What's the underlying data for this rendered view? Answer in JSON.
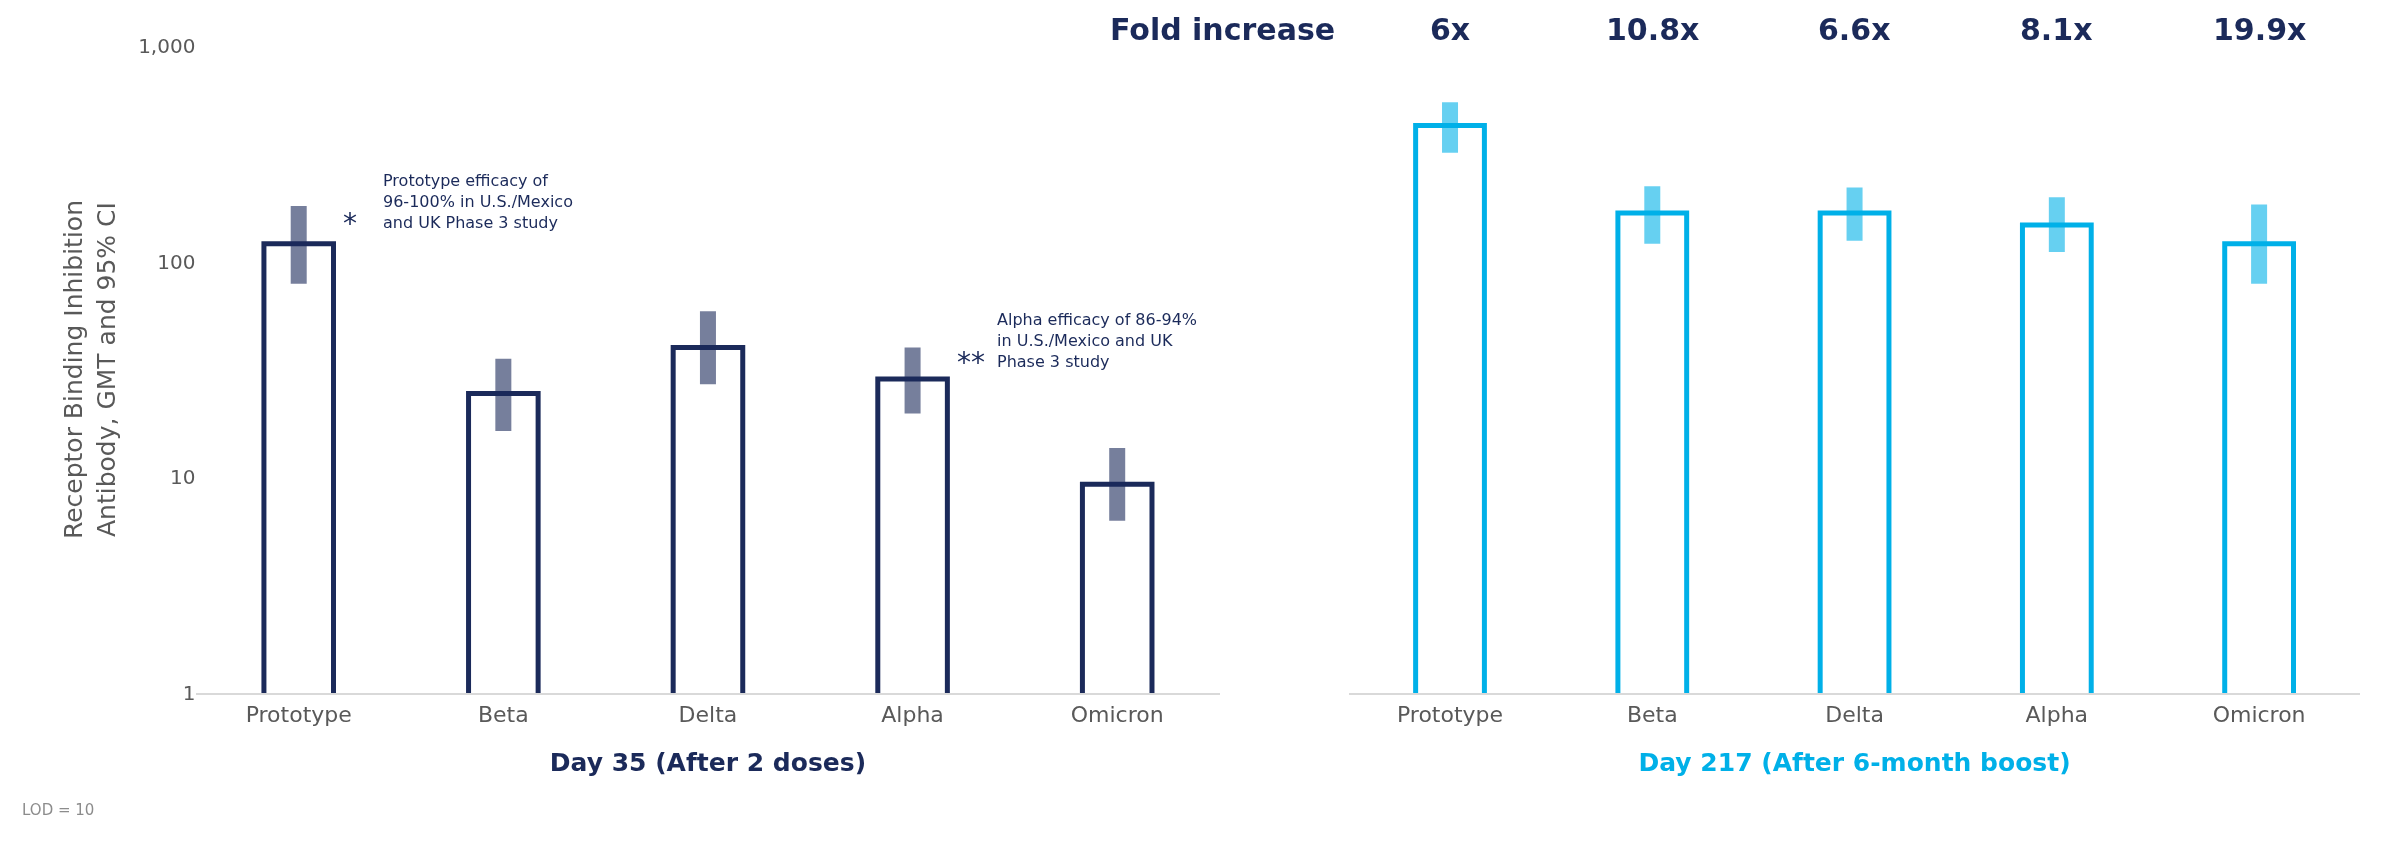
{
  "chart_data": [
    {
      "type": "bar",
      "categories": [
        "Prototype",
        "Beta",
        "Delta",
        "Alpha",
        "Omicron"
      ],
      "xlabel": "Day 35 (After 2 doses)",
      "ylabel": "Receptor Binding Inhibition\nAntibody, GMT and 95% CI",
      "log": true,
      "ylim": [
        1,
        1000
      ],
      "yticks": [
        1,
        10,
        100,
        {
          "value": 1000,
          "label": "1,000"
        }
      ],
      "series": [
        {
          "color": "#1b2a5a",
          "values": [
            121,
            24.5,
            40,
            28.6,
            9.3
          ],
          "errors": [
            [
              79,
              181
            ],
            [
              16.4,
              35.5
            ],
            [
              27,
              59
            ],
            [
              19.8,
              40
            ],
            [
              6.3,
              13.7
            ]
          ]
        }
      ],
      "annotations": [
        {
          "text": "*",
          "x": "Prototype",
          "y": 150
        },
        "Prototype efficacy of\n96-100% in U.S./Mexico\nand UK Phase 3 study",
        {
          "text": "**",
          "x": "Alpha",
          "y": 34
        },
        "Alpha efficacy of 86-94%\nin U.S./Mexico and UK\nPhase 3 study",
        "LOD = 10"
      ]
    },
    {
      "type": "bar",
      "categories": [
        "Prototype",
        "Beta",
        "Delta",
        "Alpha",
        "Omicron"
      ],
      "xlabel": "Day 217 (After 6-month boost)",
      "log": true,
      "ylim": [
        1,
        1000
      ],
      "yticks": [
        1,
        10,
        100,
        1000
      ],
      "tick_labels": "x",
      "series": [
        {
          "color": "#00b0e8",
          "values": [
            428,
            168,
            168,
            148,
            121
          ],
          "errors": [
            [
              320,
              548
            ],
            [
              121,
              224
            ],
            [
              125,
              221
            ],
            [
              111,
              199
            ],
            [
              79,
              184
            ]
          ]
        }
      ],
      "annotations": [
        "Fold increase",
        "6x",
        "10.8x",
        "6.6x",
        "8.1x",
        "19.9x"
      ]
    }
  ]
}
